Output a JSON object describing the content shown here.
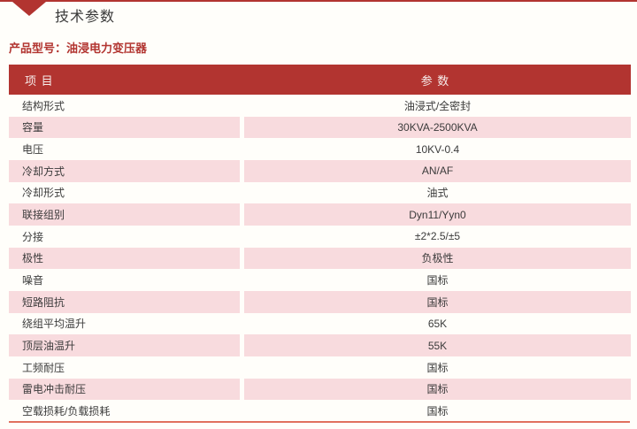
{
  "theme": {
    "accent": "#b23430",
    "row-pink": "#f8dbde",
    "line-salmon": "#e0715e",
    "text-dark": "#3b3b3b",
    "page-bg": "#fffefa",
    "header-text": "#f6ecea"
  },
  "header": {
    "title": "技术参数",
    "product_label": "产品型号：油浸电力变压器"
  },
  "table": {
    "columns": [
      "项 目",
      "参 数"
    ],
    "rows": [
      {
        "item": "结构形式",
        "value": "油浸式/全密封"
      },
      {
        "item": "容量",
        "value": "30KVA-2500KVA"
      },
      {
        "item": "电压",
        "value": "10KV-0.4"
      },
      {
        "item": "冷却方式",
        "value": "AN/AF"
      },
      {
        "item": "冷却形式",
        "value": "油式"
      },
      {
        "item": "联接组别",
        "value": "Dyn11/Yyn0"
      },
      {
        "item": "分接",
        "value": "±2*2.5/±5"
      },
      {
        "item": "极性",
        "value": "负极性"
      },
      {
        "item": "噪音",
        "value": "国标"
      },
      {
        "item": "短路阻抗",
        "value": "国标"
      },
      {
        "item": "绕组平均温升",
        "value": "65K"
      },
      {
        "item": "顶层油温升",
        "value": "55K"
      },
      {
        "item": "工频耐压",
        "value": "国标"
      },
      {
        "item": "雷电冲击耐压",
        "value": "国标"
      },
      {
        "item": "空载损耗/负载损耗",
        "value": "国标"
      }
    ]
  }
}
